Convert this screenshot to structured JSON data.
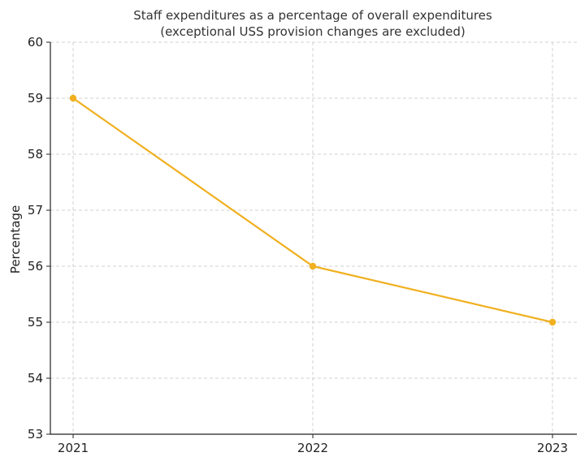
{
  "chart_data": {
    "type": "line",
    "title": "Staff expenditures as a percentage of overall expenditures",
    "subtitle": "(exceptional USS provision changes are excluded)",
    "xlabel": "",
    "ylabel": "Percentage",
    "categories": [
      "2021",
      "2022",
      "2023"
    ],
    "series": [
      {
        "values": [
          59,
          56,
          55
        ],
        "color": "#f0b020"
      }
    ],
    "ylim": [
      53,
      60
    ],
    "yticks": [
      53,
      54,
      55,
      56,
      57,
      58,
      59,
      60
    ],
    "grid": true,
    "legend": "none"
  }
}
